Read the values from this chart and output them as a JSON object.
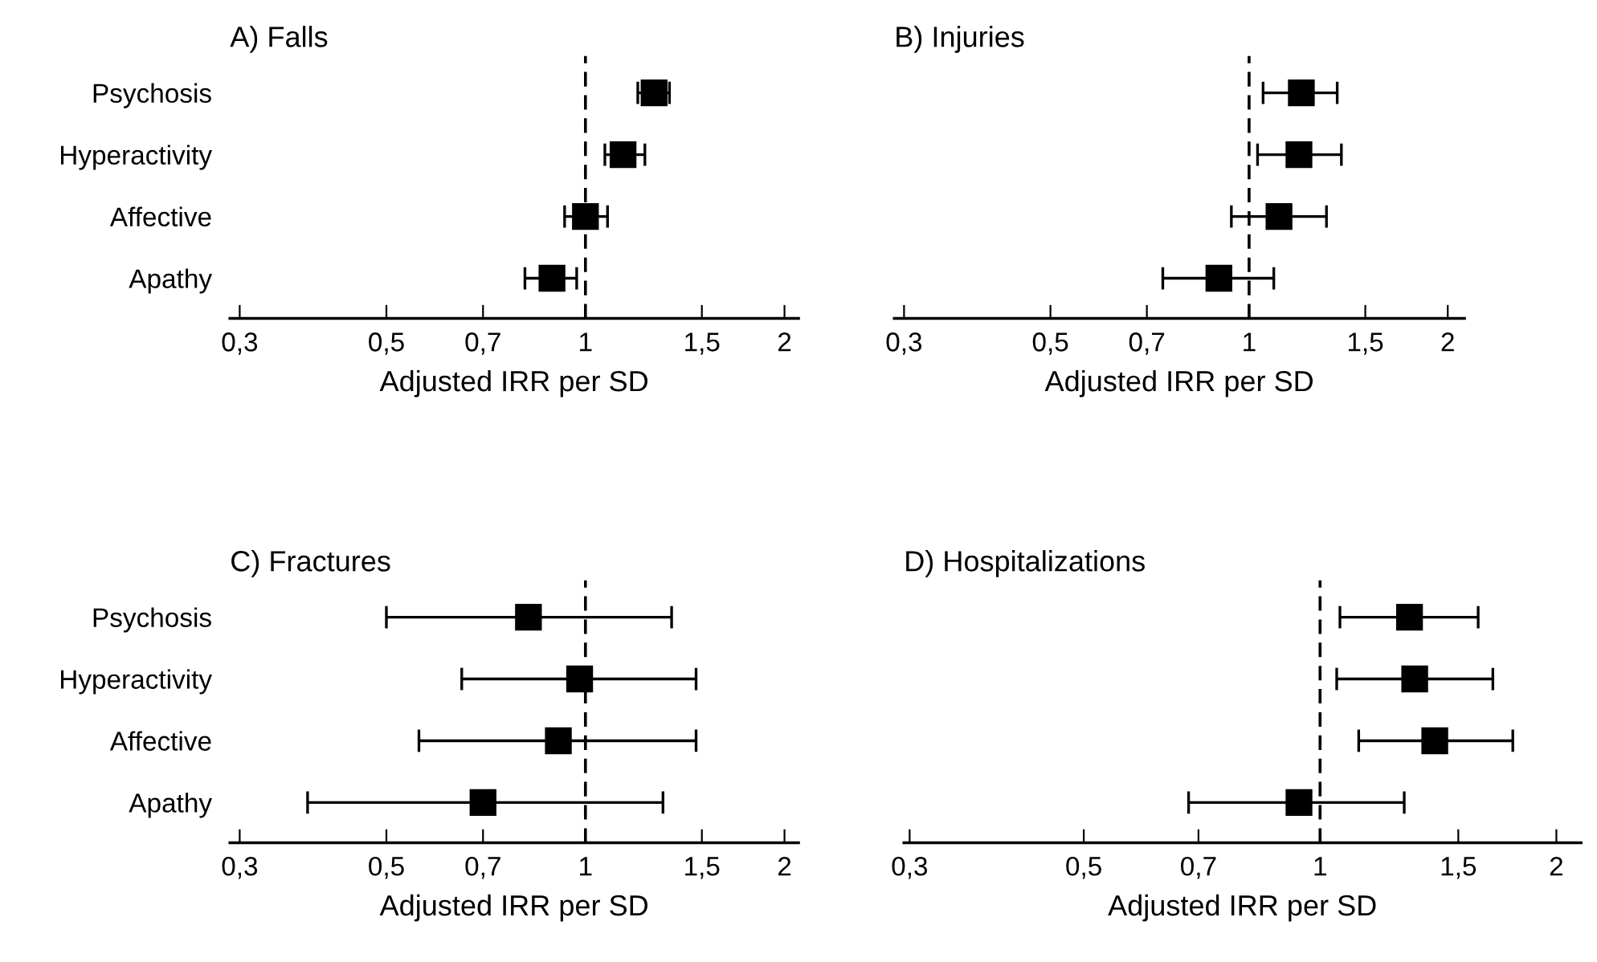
{
  "chart_data": [
    {
      "type": "scatter",
      "orientation": "horizontal",
      "title": "A) Falls",
      "xlabel": "Adjusted IRR per SD",
      "categories": [
        "Psychosis",
        "Hyperactivity",
        "Affective",
        "Apathy"
      ],
      "series": [
        {
          "color": "#000000",
          "values": [
            1.27,
            1.14,
            1.0,
            0.89
          ],
          "errors": [
            [
              1.2,
              1.34
            ],
            [
              1.07,
              1.23
            ],
            [
              0.93,
              1.08
            ],
            [
              0.81,
              0.97
            ]
          ]
        }
      ],
      "log": "x",
      "xlim": [
        0.29,
        2.1
      ],
      "xticks": [
        {
          "value": 0.3,
          "label": "0,3"
        },
        {
          "value": 0.5,
          "label": "0,5"
        },
        {
          "value": 0.7,
          "label": "0,7"
        },
        1,
        {
          "value": 1.5,
          "label": "1,5"
        },
        2
      ],
      "ref_lines": [
        {
          "axis": "x",
          "value": 1,
          "line_style": "dashed",
          "color": "#000000"
        }
      ],
      "marker": "square",
      "grid": false,
      "legend": false
    },
    {
      "type": "scatter",
      "orientation": "horizontal",
      "title": "B) Injuries",
      "xlabel": "Adjusted IRR per SD",
      "categories": [
        null,
        null,
        null,
        null
      ],
      "series": [
        {
          "color": "#000000",
          "values": [
            1.2,
            1.19,
            1.11,
            0.9
          ],
          "errors": [
            [
              1.05,
              1.36
            ],
            [
              1.03,
              1.38
            ],
            [
              0.94,
              1.31
            ],
            [
              0.74,
              1.09
            ]
          ]
        }
      ],
      "log": "x",
      "xlim": [
        0.29,
        2.12
      ],
      "xticks": [
        {
          "value": 0.3,
          "label": "0,3"
        },
        {
          "value": 0.5,
          "label": "0,5"
        },
        {
          "value": 0.7,
          "label": "0,7"
        },
        1,
        {
          "value": 1.5,
          "label": "1,5"
        },
        2
      ],
      "ref_lines": [
        {
          "axis": "x",
          "value": 1,
          "line_style": "dashed",
          "color": "#000000"
        }
      ],
      "marker": "square",
      "grid": false,
      "legend": false,
      "tick_labels": "x"
    },
    {
      "type": "scatter",
      "orientation": "horizontal",
      "title": "C) Fractures",
      "xlabel": "Adjusted IRR per SD",
      "categories": [
        "Psychosis",
        "Hyperactivity",
        "Affective",
        "Apathy"
      ],
      "series": [
        {
          "color": "#000000",
          "values": [
            0.82,
            0.98,
            0.91,
            0.7
          ],
          "errors": [
            [
              0.5,
              1.35
            ],
            [
              0.65,
              1.47
            ],
            [
              0.56,
              1.47
            ],
            [
              0.38,
              1.31
            ]
          ]
        }
      ],
      "log": "x",
      "xlim": [
        0.29,
        2.1
      ],
      "xticks": [
        {
          "value": 0.3,
          "label": "0,3"
        },
        {
          "value": 0.5,
          "label": "0,5"
        },
        {
          "value": 0.7,
          "label": "0,7"
        },
        1,
        {
          "value": 1.5,
          "label": "1,5"
        },
        2
      ],
      "ref_lines": [
        {
          "axis": "x",
          "value": 1,
          "line_style": "dashed",
          "color": "#000000"
        }
      ],
      "marker": "square",
      "grid": false,
      "legend": false
    },
    {
      "type": "scatter",
      "orientation": "horizontal",
      "title": "D) Hospitalizations",
      "xlabel": "Adjusted IRR per SD",
      "categories": [
        null,
        null,
        null,
        null
      ],
      "series": [
        {
          "color": "#000000",
          "values": [
            1.3,
            1.32,
            1.4,
            0.94
          ],
          "errors": [
            [
              1.06,
              1.59
            ],
            [
              1.05,
              1.66
            ],
            [
              1.12,
              1.76
            ],
            [
              0.68,
              1.28
            ]
          ]
        }
      ],
      "log": "x",
      "xlim": [
        0.295,
        2.15
      ],
      "xticks": [
        {
          "value": 0.3,
          "label": "0,3"
        },
        {
          "value": 0.5,
          "label": "0,5"
        },
        {
          "value": 0.7,
          "label": "0,7"
        },
        1,
        {
          "value": 1.5,
          "label": "1,5"
        },
        2
      ],
      "ref_lines": [
        {
          "axis": "x",
          "value": 1,
          "line_style": "dashed",
          "color": "#000000"
        }
      ],
      "marker": "square",
      "grid": false,
      "legend": false,
      "tick_labels": "x"
    }
  ]
}
